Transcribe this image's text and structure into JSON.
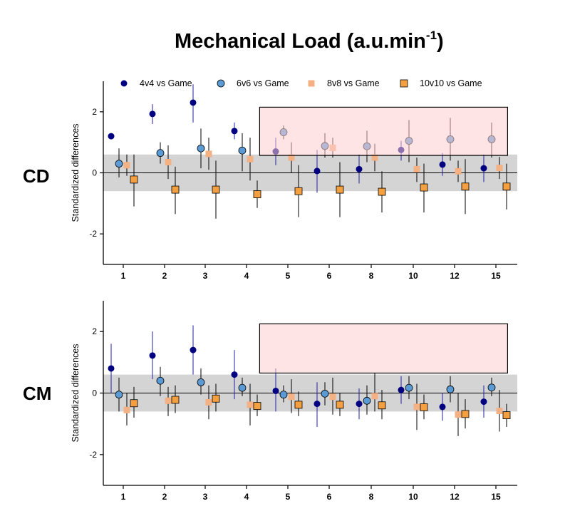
{
  "chart_data": {
    "type": "scatter",
    "title": "Mechanical Load (a.u.min",
    "title_superscript": "-1",
    "title_suffix": ")",
    "ylabel": "Standardized differences",
    "ylim": [
      -3,
      3
    ],
    "yticks": [
      2,
      0,
      -2
    ],
    "ytick_labels": [
      "2",
      "0",
      "-2"
    ],
    "trivial_band": [
      -0.6,
      0.6
    ],
    "categories": [
      "1",
      "2",
      "3",
      "4",
      "5",
      "6",
      "8",
      "10",
      "12",
      "15"
    ],
    "legend": [
      {
        "name": "4v4 vs Game",
        "marker": "circle",
        "color": "#000080"
      },
      {
        "name": "6v6 vs Game",
        "marker": "circle",
        "color": "#5b9bd5"
      },
      {
        "name": "8v8 vs Game",
        "marker": "square",
        "color": "#f4b183"
      },
      {
        "name": "10v10 vs Game",
        "marker": "square",
        "color": "#f4a040"
      }
    ],
    "panels": [
      {
        "label": "CD",
        "highlight": {
          "x_from": 4.3,
          "x_to": 10.3,
          "y_from": 0.57,
          "y_to": 2.15
        },
        "series": [
          {
            "name": "4v4 vs Game",
            "values": [
              1.2,
              1.93,
              2.3,
              1.37,
              0.7,
              0.06,
              0.12,
              0.75,
              0.27,
              0.15
            ],
            "lower": [
              1.2,
              1.6,
              1.65,
              1.1,
              0.25,
              -0.65,
              -0.35,
              0.4,
              -0.1,
              -0.3
            ],
            "upper": [
              1.2,
              2.25,
              2.9,
              1.65,
              1.15,
              0.75,
              0.6,
              1.05,
              0.65,
              0.6
            ]
          },
          {
            "name": "6v6 vs Game",
            "values": [
              0.3,
              0.65,
              0.8,
              0.73,
              1.33,
              0.88,
              0.87,
              1.05,
              1.1,
              1.1
            ],
            "lower": [
              -0.15,
              0.3,
              0.15,
              0.05,
              1.1,
              0.5,
              0.35,
              0.35,
              0.4,
              0.5
            ],
            "upper": [
              0.8,
              1.0,
              1.45,
              1.3,
              1.55,
              1.3,
              1.38,
              1.73,
              1.8,
              1.65
            ]
          },
          {
            "name": "8v8 vs Game",
            "values": [
              0.25,
              0.35,
              0.62,
              0.45,
              0.5,
              0.82,
              0.5,
              0.12,
              0.05,
              0.16
            ],
            "lower": [
              -0.1,
              -0.2,
              0.1,
              -0.25,
              0.0,
              0.5,
              0.05,
              -0.3,
              -0.3,
              -0.2
            ],
            "upper": [
              0.6,
              0.9,
              1.15,
              1.15,
              1.0,
              1.15,
              0.95,
              0.5,
              0.4,
              0.52
            ]
          },
          {
            "name": "10v10 vs Game",
            "values": [
              -0.22,
              -0.55,
              -0.55,
              -0.7,
              -0.6,
              -0.55,
              -0.62,
              -0.48,
              -0.45,
              -0.45
            ],
            "lower": [
              -1.1,
              -1.35,
              -1.5,
              -1.15,
              -1.45,
              -1.45,
              -1.3,
              -1.3,
              -1.35,
              -1.2
            ],
            "upper": [
              0.6,
              0.2,
              0.4,
              -0.25,
              0.25,
              0.35,
              0.05,
              0.3,
              0.45,
              0.3
            ]
          }
        ]
      },
      {
        "label": "CM",
        "highlight": {
          "x_from": 4.3,
          "x_to": 10.3,
          "y_from": 0.65,
          "y_to": 2.25
        },
        "series": [
          {
            "name": "4v4 vs Game",
            "values": [
              0.8,
              1.22,
              1.4,
              0.6,
              0.07,
              -0.35,
              -0.35,
              0.1,
              -0.45,
              -0.28
            ],
            "lower": [
              0.0,
              0.45,
              0.6,
              -0.2,
              -0.6,
              -1.1,
              -0.85,
              -0.35,
              -0.9,
              -0.8
            ],
            "upper": [
              1.6,
              2.0,
              2.2,
              1.4,
              0.8,
              0.35,
              0.15,
              0.55,
              0.0,
              0.25
            ]
          },
          {
            "name": "6v6 vs Game",
            "values": [
              -0.05,
              0.4,
              0.35,
              0.17,
              -0.05,
              -0.02,
              -0.25,
              0.17,
              0.12,
              0.18
            ],
            "lower": [
              -0.6,
              -0.1,
              -0.05,
              -0.1,
              -0.3,
              -0.4,
              -0.7,
              -0.2,
              -0.3,
              -0.1
            ],
            "upper": [
              0.5,
              0.85,
              0.8,
              0.5,
              0.25,
              0.35,
              0.25,
              0.55,
              0.55,
              0.5
            ]
          },
          {
            "name": "8v8 vs Game",
            "values": [
              -0.55,
              -0.25,
              -0.3,
              -0.38,
              -0.12,
              -0.12,
              -0.1,
              -0.45,
              -0.7,
              -0.58
            ],
            "lower": [
              -1.05,
              -0.75,
              -0.85,
              -1.05,
              -0.65,
              -0.7,
              -0.6,
              -1.2,
              -1.4,
              -1.25
            ],
            "upper": [
              0.0,
              0.2,
              0.25,
              0.3,
              0.45,
              0.5,
              0.65,
              0.3,
              0.0,
              0.1
            ]
          },
          {
            "name": "10v10 vs Game",
            "values": [
              -0.33,
              -0.22,
              -0.18,
              -0.42,
              -0.38,
              -0.38,
              -0.4,
              -0.46,
              -0.68,
              -0.72
            ],
            "lower": [
              -0.8,
              -0.65,
              -0.6,
              -0.75,
              -0.75,
              -0.75,
              -0.85,
              -0.85,
              -1.15,
              -1.1
            ],
            "upper": [
              0.2,
              0.25,
              0.3,
              -0.05,
              0.05,
              0.0,
              0.1,
              -0.05,
              -0.2,
              -0.35
            ]
          }
        ]
      }
    ]
  }
}
